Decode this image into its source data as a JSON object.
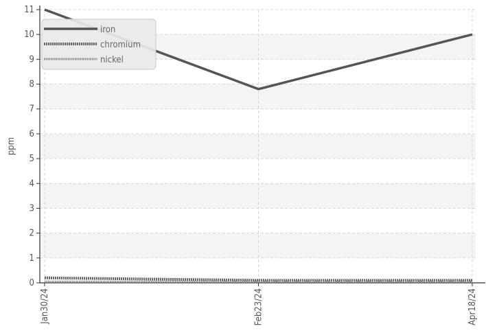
{
  "chart_data": {
    "type": "line",
    "categories": [
      "Jan30/24",
      "Feb23/24",
      "Apr18/24"
    ],
    "ylabel": "ppm",
    "ylim": [
      0,
      11
    ],
    "yticks": [
      0,
      1,
      2,
      3,
      4,
      5,
      6,
      7,
      8,
      9,
      10,
      11
    ],
    "grid": true,
    "legend": "top-left",
    "series": [
      {
        "name": "iron",
        "values": [
          11,
          7.8,
          10
        ],
        "color": "#555555",
        "style": "solid"
      },
      {
        "name": "chromium",
        "values": [
          0.2,
          0.1,
          0.1
        ],
        "color": "#666666",
        "style": "dotted"
      },
      {
        "name": "nickel",
        "values": [
          0.05,
          0.05,
          0.05
        ],
        "color": "#888888",
        "style": "dotted-thin"
      }
    ]
  }
}
